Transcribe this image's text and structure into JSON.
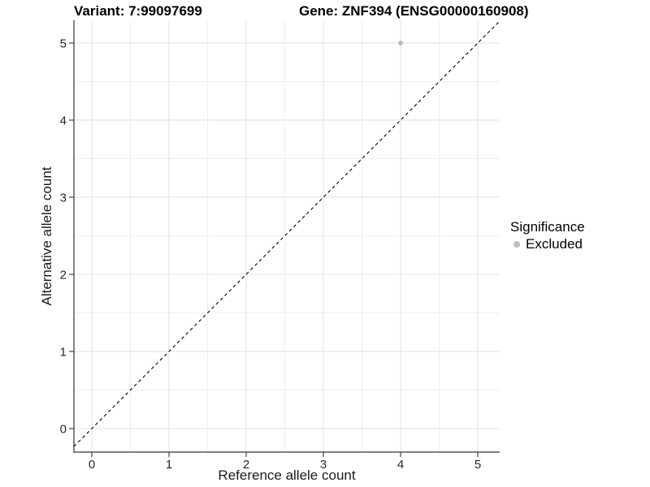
{
  "chart_data": {
    "type": "scatter",
    "title_left": "Variant: 7:99097699",
    "title_right": "Gene: ZNF394 (ENSG00000160908)",
    "xlabel": "Reference allele count",
    "ylabel": "Alternative allele count",
    "xticks": [
      0,
      1,
      2,
      3,
      4,
      5
    ],
    "yticks": [
      0,
      1,
      2,
      3,
      4,
      5
    ],
    "xlim": [
      -0.25,
      5.3
    ],
    "ylim": [
      -0.3,
      5.3
    ],
    "grid": "major+minor",
    "identity_line": {
      "style": "dashed",
      "color": "#000000"
    },
    "points": [
      {
        "x": 4,
        "y": 5,
        "significance": "Excluded"
      }
    ],
    "legend": {
      "title": "Significance",
      "position": "right",
      "entries": [
        {
          "label": "Excluded",
          "color": "#bdbdbd"
        }
      ]
    },
    "colors": {
      "background": "#ffffff",
      "grid_major": "#e2e2e2",
      "grid_minor": "#efefef",
      "axis_line": "#333333",
      "tick_text": "#262626",
      "point_excluded": "#bdbdbd"
    }
  }
}
